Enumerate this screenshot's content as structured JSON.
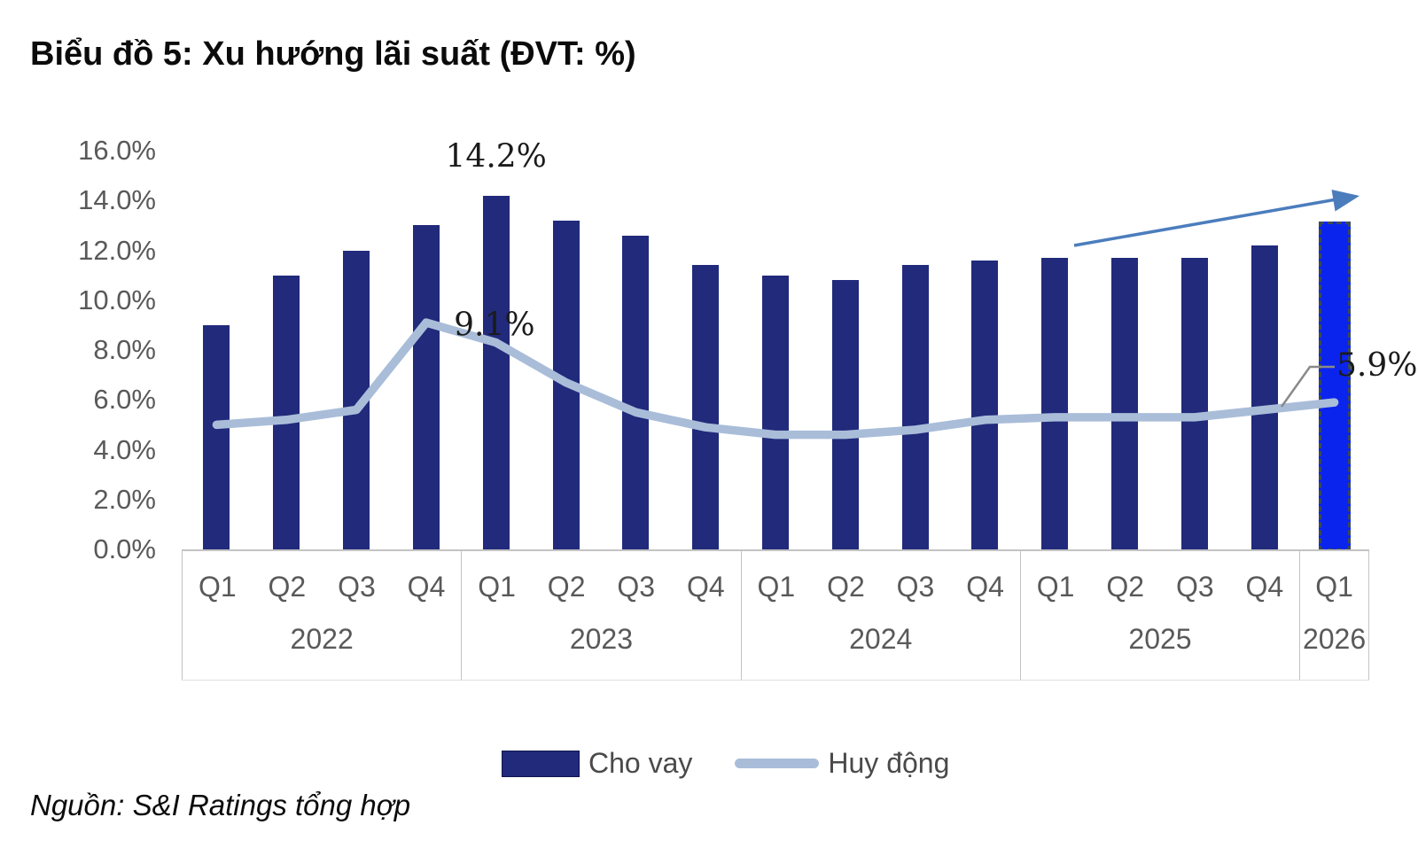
{
  "title": "Biểu đồ 5: Xu hướng lãi suất (ĐVT: %)",
  "source": "Nguồn: S&I Ratings tổng hợp",
  "legend": {
    "bar_label": "Cho vay",
    "line_label": "Huy động"
  },
  "annotations": {
    "bar_peak": "14.2%",
    "line_peak": "9.1%",
    "line_end": "5.9%"
  },
  "icons": {
    "trend_arrow": "trend-up-arrow"
  },
  "colors": {
    "bar": "#212a7b",
    "bar_highlight": "#0a24ee",
    "bar_highlight_border": "#3c4b55",
    "line": "#a9bdd9",
    "arrow": "#4b7dbd",
    "leader": "#8a8a8a",
    "axis_text": "#595959",
    "annotation_text": "#1b1b1b"
  },
  "chart_data": {
    "type": "bar",
    "note": "combo bar+line chart, quarterly interest rates in percent",
    "categories": [
      "Q1",
      "Q2",
      "Q3",
      "Q4",
      "Q1",
      "Q2",
      "Q3",
      "Q4",
      "Q1",
      "Q2",
      "Q3",
      "Q4",
      "Q1",
      "Q2",
      "Q3",
      "Q4",
      "Q1"
    ],
    "year_groups": [
      {
        "label": "2022",
        "span": 4
      },
      {
        "label": "2023",
        "span": 4
      },
      {
        "label": "2024",
        "span": 4
      },
      {
        "label": "2025",
        "span": 4
      },
      {
        "label": "2026",
        "span": 1
      }
    ],
    "series": [
      {
        "name": "Cho vay",
        "type": "bar",
        "values": [
          9.0,
          11.0,
          12.0,
          13.0,
          14.2,
          13.2,
          12.6,
          11.4,
          11.0,
          10.8,
          11.4,
          11.6,
          11.7,
          11.7,
          11.7,
          12.2,
          13.0
        ]
      },
      {
        "name": "Huy động",
        "type": "line",
        "values": [
          5.0,
          5.2,
          5.6,
          9.1,
          8.3,
          6.7,
          5.5,
          4.9,
          4.6,
          4.6,
          4.8,
          5.2,
          5.3,
          5.3,
          5.3,
          5.6,
          5.9
        ]
      }
    ],
    "highlight_last_bar": true,
    "ylim": [
      0,
      16
    ],
    "ytick_step": 2,
    "yticks": [
      "16.0%",
      "14.0%",
      "12.0%",
      "10.0%",
      "8.0%",
      "6.0%",
      "4.0%",
      "2.0%",
      "0.0%"
    ],
    "grid": false,
    "legend_position": "bottom"
  }
}
